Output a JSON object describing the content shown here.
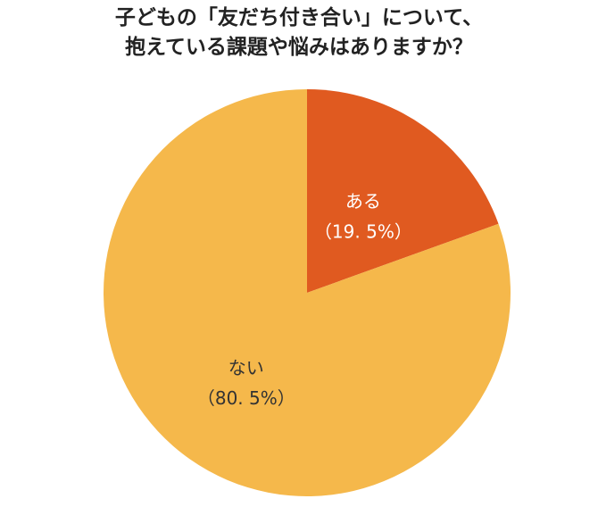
{
  "title": {
    "line1": "子どもの「友だち付き合い」について、",
    "line2": "抱えている課題や悩みはありますか？"
  },
  "chart_data": {
    "type": "pie",
    "title": "子どもの「友だち付き合い」について、抱えている課題や悩みはありますか？",
    "slices": [
      {
        "label": "ある",
        "value": 19.5,
        "value_label": "（19. 5%）",
        "color": "#e05a20",
        "text_color": "#ffffff"
      },
      {
        "label": "ない",
        "value": 80.5,
        "value_label": "（80. 5%）",
        "color": "#f5b84b",
        "text_color": "#333333"
      }
    ],
    "start": "12 o'clock",
    "direction": "clockwise",
    "legend": "none"
  }
}
